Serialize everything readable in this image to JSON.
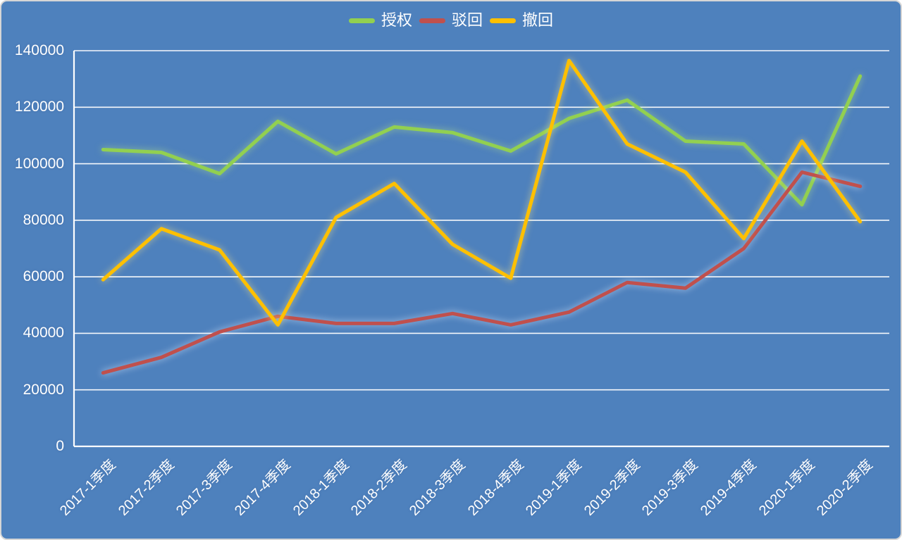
{
  "chart_data": {
    "type": "line",
    "title": "",
    "categories": [
      "2017-1季度",
      "2017-2季度",
      "2017-3季度",
      "2017-4季度",
      "2018-1季度",
      "2018-2季度",
      "2018-3季度",
      "2018-4季度",
      "2019-1季度",
      "2019-2季度",
      "2019-3季度",
      "2019-4季度",
      "2020-1季度",
      "2020-2季度"
    ],
    "series": [
      {
        "name": "授权",
        "color": "#92D050",
        "values": [
          105000,
          104000,
          96500,
          115000,
          103500,
          113000,
          111000,
          104500,
          116000,
          122500,
          108000,
          107000,
          85500,
          131000
        ]
      },
      {
        "name": "驳回",
        "color": "#C0504D",
        "values": [
          26000,
          31500,
          40500,
          46000,
          43500,
          43500,
          47000,
          43000,
          47500,
          58000,
          56000,
          70000,
          97000,
          92000
        ]
      },
      {
        "name": "撤回",
        "color": "#FFC000",
        "values": [
          59000,
          77000,
          69500,
          43000,
          81000,
          93000,
          71500,
          59500,
          136500,
          107000,
          97000,
          73500,
          108000,
          79500
        ]
      }
    ],
    "xlabel": "",
    "ylabel": "",
    "ylim": [
      0,
      140000
    ],
    "yticks": [
      0,
      20000,
      40000,
      60000,
      80000,
      100000,
      120000,
      140000
    ],
    "grid": true,
    "gridline_color": "#FFFFFF",
    "legend_position": "top-center",
    "background_color": "#4E81BD",
    "text_color": "#FFFFFF"
  }
}
